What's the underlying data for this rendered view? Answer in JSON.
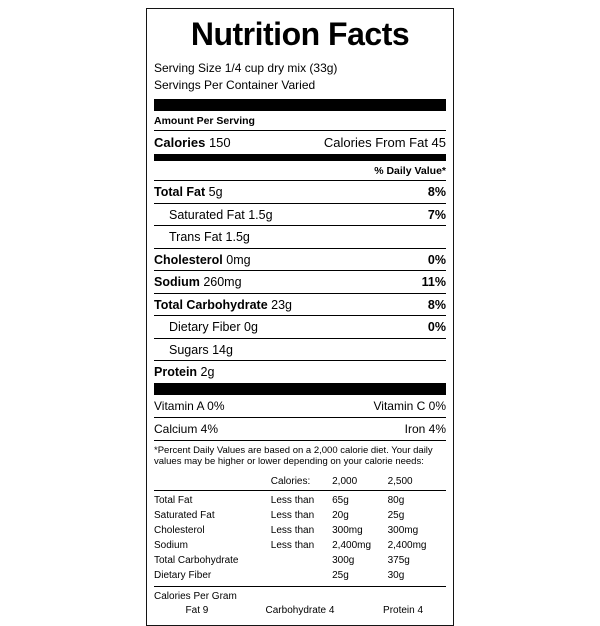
{
  "label": {
    "title": "Nutrition Facts",
    "serving_size": "Serving Size 1/4 cup dry mix (33g)",
    "servings_per_container": "Servings Per Container Varied",
    "amount_per_serving": "Amount Per Serving",
    "calories": {
      "label": "Calories",
      "value": "150",
      "from_fat": "Calories From Fat 45"
    },
    "daily_value_header": "% Daily Value*",
    "nutrients": [
      {
        "name": "Total Fat",
        "amount": "5g",
        "dv": "8%"
      },
      {
        "name": "Saturated Fat",
        "amount": "1.5g",
        "dv": "7%"
      },
      {
        "name": "Trans Fat",
        "amount": "1.5g",
        "dv": ""
      },
      {
        "name": "Cholesterol",
        "amount": "0mg",
        "dv": "0%"
      },
      {
        "name": "Sodium",
        "amount": "260mg",
        "dv": "11%"
      },
      {
        "name": "Total Carbohydrate",
        "amount": "23g",
        "dv": "8%"
      },
      {
        "name": "Dietary Fiber",
        "amount": "0g",
        "dv": "0%"
      },
      {
        "name": "Sugars",
        "amount": "14g",
        "dv": ""
      },
      {
        "name": "Protein",
        "amount": "2g",
        "dv": ""
      }
    ],
    "vitamins": [
      {
        "left": "Vitamin A 0%",
        "right": "Vitamin C 0%"
      },
      {
        "left": "Calcium 4%",
        "right": "Iron 4%"
      }
    ],
    "footnote": "*Percent Daily Values are based on a 2,000 calorie diet. Your daily values may be higher or lower depending on your calorie needs:",
    "dv_table": {
      "header": {
        "calories": "Calories:",
        "c2000": "2,000",
        "c2500": "2,500"
      },
      "rows": [
        {
          "name": "Total Fat",
          "qualifier": "Less than",
          "c2000": "65g",
          "c2500": "80g"
        },
        {
          "name": "Saturated Fat",
          "qualifier": "Less than",
          "c2000": "20g",
          "c2500": "25g"
        },
        {
          "name": "Cholesterol",
          "qualifier": "Less than",
          "c2000": "300mg",
          "c2500": "300mg"
        },
        {
          "name": "Sodium",
          "qualifier": "Less than",
          "c2000": "2,400mg",
          "c2500": "2,400mg"
        },
        {
          "name": "Total Carbohydrate",
          "qualifier": "",
          "c2000": "300g",
          "c2500": "375g"
        },
        {
          "name": "Dietary Fiber",
          "qualifier": "",
          "c2000": "25g",
          "c2500": "30g"
        }
      ]
    },
    "calories_per_gram": {
      "title": "Calories Per Gram",
      "items": [
        "Fat 9",
        "Carbohydrate 4",
        "Protein 4"
      ]
    },
    "colors": {
      "background": "#ffffff",
      "text": "#000000",
      "bar": "#000000"
    }
  }
}
